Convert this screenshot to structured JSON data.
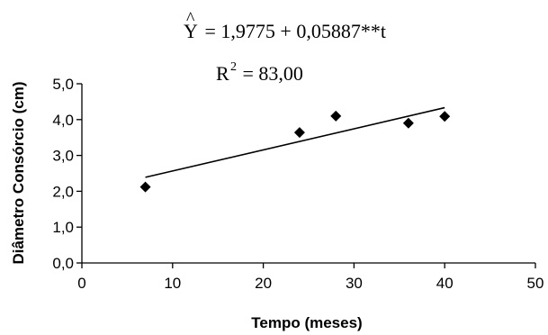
{
  "chart_data": {
    "type": "scatter",
    "title": "",
    "xlabel": "Tempo (meses)",
    "ylabel": "Diâmetro Consórcio (cm)",
    "xlim": [
      0,
      50
    ],
    "ylim": [
      0,
      5
    ],
    "x_ticks": [
      0,
      10,
      20,
      30,
      40,
      50
    ],
    "x_tick_labels": [
      "0",
      "10",
      "20",
      "30",
      "40",
      "50"
    ],
    "y_ticks": [
      0,
      1,
      2,
      3,
      4,
      5
    ],
    "y_tick_labels": [
      "0,0",
      "1,0",
      "2,0",
      "3,0",
      "4,0",
      "5,0"
    ],
    "grid": false,
    "legend": "none",
    "marker": "diamond",
    "marker_color": "#000000",
    "series": [
      {
        "x": [
          7,
          24,
          28,
          36,
          40
        ],
        "y": [
          2.12,
          3.64,
          4.1,
          3.9,
          4.09
        ]
      }
    ],
    "fit_line": {
      "intercept": 1.9775,
      "slope": 0.05887,
      "x_range": [
        7,
        40
      ]
    },
    "annotations": {
      "equation_prefix": " = 1,9775 + 0,05887**t",
      "equation_symbol": "Y",
      "equation_hat": "^",
      "r2_prefix": "R",
      "r2_exponent": "2",
      "r2_suffix": " = 83,00"
    }
  }
}
